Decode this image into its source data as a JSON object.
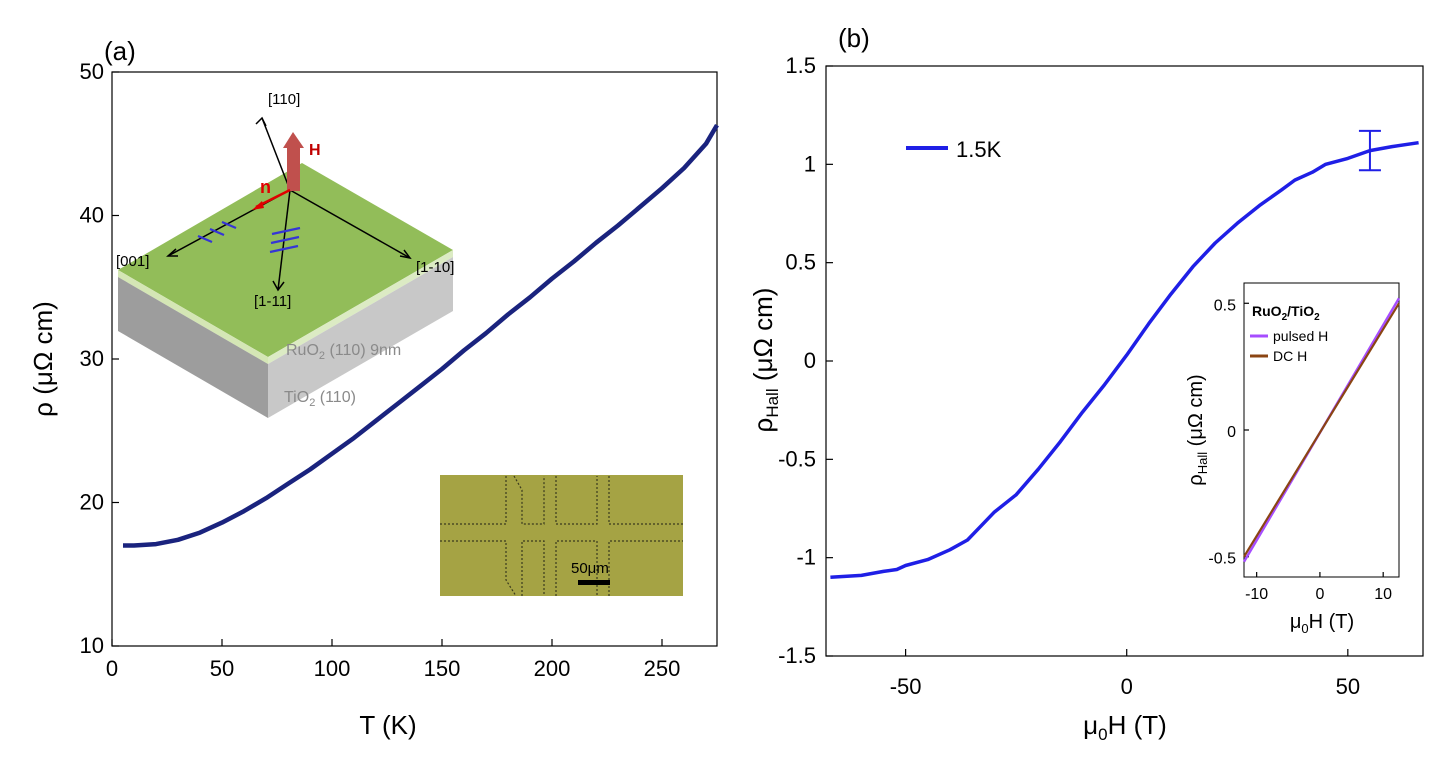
{
  "chart_data": [
    {
      "panel_label": "(a)",
      "type": "line",
      "title": "",
      "xlabel": "T (K)",
      "ylabel": "ρ (μΩ cm)",
      "xlim": [
        0,
        275
      ],
      "ylim": [
        10,
        50
      ],
      "xticks": [
        "0",
        "50",
        "100",
        "150",
        "200",
        "250"
      ],
      "yticks": [
        "10",
        "20",
        "30",
        "40",
        "50"
      ],
      "series": [
        {
          "name": "ρ(T)",
          "color": "#1a237e",
          "x": [
            5,
            10,
            20,
            30,
            40,
            50,
            60,
            70,
            80,
            90,
            100,
            110,
            120,
            130,
            140,
            150,
            160,
            170,
            180,
            190,
            200,
            210,
            220,
            230,
            240,
            250,
            260,
            270,
            275
          ],
          "y": [
            17.0,
            17.0,
            17.1,
            17.4,
            17.9,
            18.6,
            19.4,
            20.3,
            21.3,
            22.3,
            23.4,
            24.5,
            25.7,
            26.9,
            28.1,
            29.3,
            30.6,
            31.8,
            33.1,
            34.3,
            35.6,
            36.8,
            38.1,
            39.3,
            40.6,
            41.9,
            43.3,
            45.0,
            46.3
          ]
        }
      ],
      "inset_schematic": {
        "directions": [
          "[110]",
          "[001]",
          "[1-10]",
          "[1-11]"
        ],
        "field_label": "H",
        "vector_label": "n",
        "layer_top": "RuO",
        "layer_top_sub": "2",
        "layer_top_suffix": " (110) 9nm",
        "layer_bottom": "TiO",
        "layer_bottom_sub": "2",
        "layer_bottom_suffix": " (110)",
        "film_color": "#92bd59",
        "substrate_color": "#c8c8c8"
      },
      "inset_micrograph": {
        "scale_bar": "50μm",
        "background_color": "#a5a344"
      }
    },
    {
      "panel_label": "(b)",
      "type": "line",
      "title": "",
      "xlabel": "μ",
      "xlabel_sub": "0",
      "xlabel_suffix": "H (T)",
      "ylabel": "ρ",
      "ylabel_sub": "Hall",
      "ylabel_suffix": " (μΩ cm)",
      "xlim": [
        -68,
        67
      ],
      "ylim": [
        -1.5,
        1.5
      ],
      "xticks": [
        "-50",
        "0",
        "50"
      ],
      "yticks": [
        "-1.5",
        "-1",
        "-0.5",
        "0",
        "0.5",
        "1",
        "1.5"
      ],
      "legend": "top-left",
      "series": [
        {
          "name": "1.5K",
          "color": "#1f1fe6",
          "x": [
            -67,
            -60,
            -55,
            -52,
            -50,
            -45,
            -40,
            -36,
            -33,
            -30,
            -25,
            -20,
            -15,
            -10,
            -5,
            0,
            5,
            10,
            15,
            20,
            25,
            30,
            35,
            38,
            42,
            45,
            50,
            55,
            60,
            66
          ],
          "y": [
            -1.1,
            -1.09,
            -1.07,
            -1.06,
            -1.04,
            -1.01,
            -0.96,
            -0.91,
            -0.84,
            -0.77,
            -0.68,
            -0.55,
            -0.41,
            -0.26,
            -0.12,
            0.03,
            0.19,
            0.34,
            0.48,
            0.6,
            0.7,
            0.79,
            0.87,
            0.92,
            0.96,
            1.0,
            1.03,
            1.07,
            1.09,
            1.11
          ]
        }
      ],
      "error_bar": {
        "x": 55,
        "y": 1.07,
        "yerr": 0.1
      },
      "inset": {
        "title": "RuO",
        "title_sub": "2",
        "title_mid": "/TiO",
        "title_sub2": "2",
        "xlabel": "μ",
        "xlabel_sub": "0",
        "xlabel_suffix": "H (T)",
        "ylabel": "ρ",
        "ylabel_sub": "Hall",
        "ylabel_suffix": " (μΩ cm)",
        "xlim": [
          -12,
          12.5
        ],
        "ylim": [
          -0.58,
          0.58
        ],
        "xticks": [
          "-10",
          "0",
          "10"
        ],
        "yticks": [
          "-0.5",
          "0",
          "0.5"
        ],
        "series": [
          {
            "name": "pulsed H",
            "color": "#a64dff",
            "x": [
              -12,
              12.5
            ],
            "y": [
              -0.52,
              0.52
            ]
          },
          {
            "name": "DC H",
            "color": "#8b4513",
            "x": [
              -12,
              12.5
            ],
            "y": [
              -0.5,
              0.5
            ]
          }
        ]
      }
    }
  ]
}
